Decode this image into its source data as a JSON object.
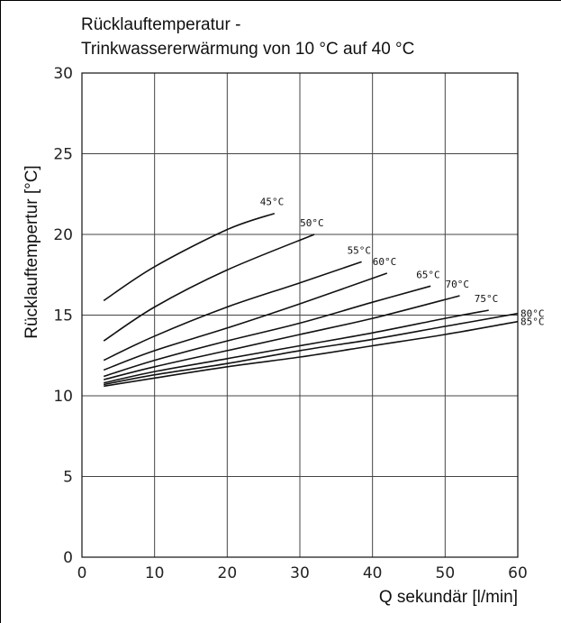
{
  "chart_data": {
    "type": "line",
    "title_lines": [
      "Rücklauftemperatur -",
      "Trinkwassererwärmung von 10 °C auf 40 °C"
    ],
    "xlabel": "Q sekundär [l/min]",
    "ylabel": "Rücklauftempertur [°C]",
    "xlim": [
      0,
      60
    ],
    "ylim": [
      0,
      30
    ],
    "xticks": [
      0,
      10,
      20,
      30,
      40,
      50,
      60
    ],
    "yticks": [
      0,
      5,
      10,
      15,
      20,
      25,
      30
    ],
    "grid": true,
    "line_color": "#111111",
    "series": [
      {
        "name": "45°C",
        "x": [
          3,
          10,
          20,
          26.5
        ],
        "y": [
          15.9,
          18.0,
          20.3,
          21.3
        ]
      },
      {
        "name": "50°C",
        "x": [
          3,
          10,
          20,
          32
        ],
        "y": [
          13.4,
          15.5,
          17.8,
          20.0
        ]
      },
      {
        "name": "55°C",
        "x": [
          3,
          10,
          20,
          30,
          38.5
        ],
        "y": [
          12.2,
          13.7,
          15.5,
          17.0,
          18.3
        ]
      },
      {
        "name": "60°C",
        "x": [
          3,
          10,
          20,
          30,
          42
        ],
        "y": [
          11.6,
          12.8,
          14.2,
          15.7,
          17.6
        ]
      },
      {
        "name": "65°C",
        "x": [
          3,
          10,
          20,
          30,
          40,
          48
        ],
        "y": [
          11.2,
          12.2,
          13.4,
          14.5,
          15.8,
          16.8
        ]
      },
      {
        "name": "70°C",
        "x": [
          3,
          10,
          20,
          30,
          40,
          52
        ],
        "y": [
          11.0,
          11.8,
          12.8,
          13.8,
          14.8,
          16.2
        ]
      },
      {
        "name": "75°C",
        "x": [
          3,
          10,
          20,
          30,
          40,
          50,
          56
        ],
        "y": [
          10.8,
          11.5,
          12.3,
          13.1,
          13.9,
          14.8,
          15.3
        ]
      },
      {
        "name": "80°C",
        "x": [
          3,
          10,
          20,
          30,
          40,
          50,
          60
        ],
        "y": [
          10.7,
          11.3,
          12.0,
          12.8,
          13.5,
          14.3,
          15.1
        ]
      },
      {
        "name": "85°C",
        "x": [
          3,
          10,
          20,
          30,
          40,
          50,
          60
        ],
        "y": [
          10.6,
          11.1,
          11.8,
          12.4,
          13.1,
          13.8,
          14.6
        ]
      }
    ]
  }
}
